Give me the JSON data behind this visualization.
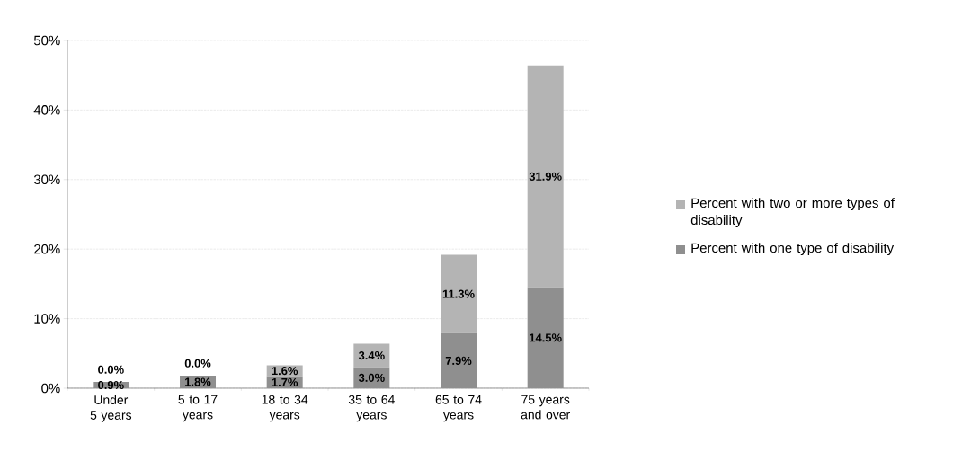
{
  "chart_data": {
    "type": "bar",
    "stacked": true,
    "categories": [
      "Under 5 years",
      "5 to 17 years",
      "18 to 34 years",
      "35 to 64 years",
      "65 to 74 years",
      "75 years and over"
    ],
    "series": [
      {
        "name": "Percent with one type of disability",
        "color": "#8f8f8f",
        "values": [
          0.9,
          1.8,
          1.7,
          3.0,
          7.9,
          14.5
        ],
        "value_labels": [
          "0.9%",
          "1.8%",
          "1.7%",
          "3.0%",
          "7.9%",
          "14.5%"
        ]
      },
      {
        "name": "Percent with two or more types of disability",
        "color": "#b4b4b4",
        "values": [
          0.0,
          0.0,
          1.6,
          3.4,
          11.3,
          31.9
        ],
        "value_labels": [
          "0.0%",
          "0.0%",
          "1.6%",
          "3.4%",
          "11.3%",
          "31.9%"
        ]
      }
    ],
    "ylim": [
      0,
      50
    ],
    "yticks": [
      {
        "value": 0,
        "label": "0%"
      },
      {
        "value": 10,
        "label": "10%"
      },
      {
        "value": 20,
        "label": "20%"
      },
      {
        "value": 30,
        "label": "30%"
      },
      {
        "value": 40,
        "label": "40%"
      },
      {
        "value": 50,
        "label": "50%"
      }
    ],
    "grid": "y",
    "legend": "right"
  }
}
